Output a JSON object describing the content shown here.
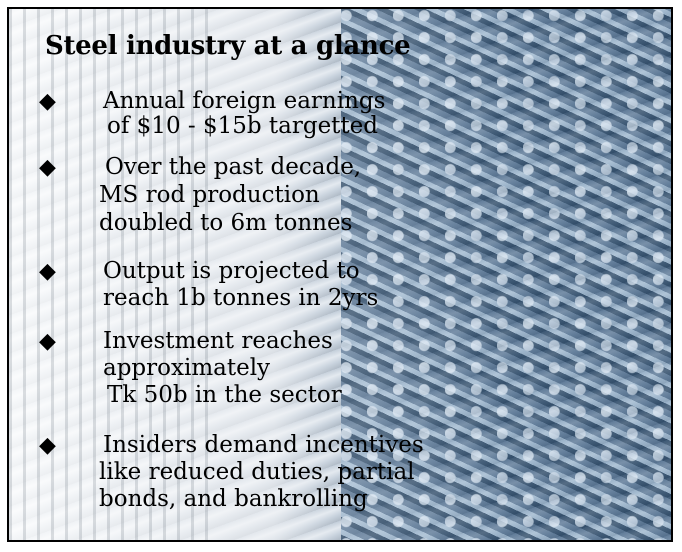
{
  "title": "Steel industry at a glance",
  "bullet_icon": "diamond",
  "items": [
    {
      "lines": [
        "Annual foreign earnings",
        "of $10 - $15b targetted"
      ]
    },
    {
      "lines": [
        "Over the past decade,",
        "MS rod production",
        "doubled to 6m tonnes"
      ]
    },
    {
      "lines": [
        "Output is projected to",
        "reach 1b tonnes in 2yrs"
      ]
    },
    {
      "lines": [
        "Investment reaches",
        "approximately",
        "Tk 50b in the sector"
      ]
    },
    {
      "lines": [
        "Insiders demand incentives",
        "like reduced duties, partial",
        "bonds, and bankrolling"
      ]
    }
  ]
}
